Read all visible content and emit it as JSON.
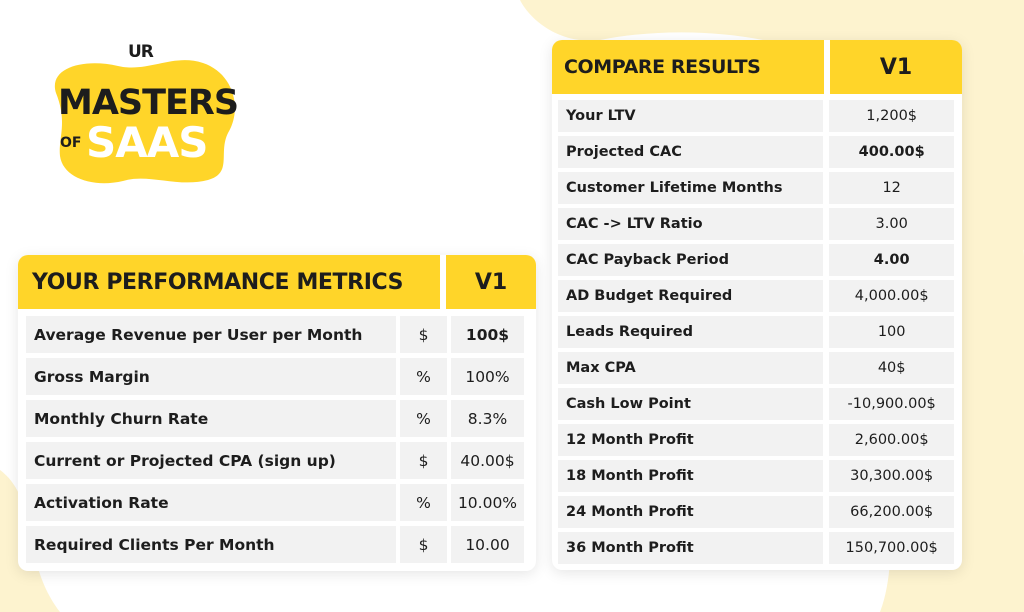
{
  "logo": {
    "mark": "UR",
    "line1": "MASTERS",
    "line2_of": "OF",
    "line2": "SAAS"
  },
  "colors": {
    "accent_yellow": "#ffd529",
    "cell_bg": "#f2f2f2",
    "bg_blob": "#fdf2cc"
  },
  "metrics": {
    "title": "YOUR PERFORMANCE METRICS",
    "version": "V1",
    "rows": [
      {
        "label": "Average Revenue per User per Month",
        "unit": "$",
        "value": "100$"
      },
      {
        "label": "Gross Margin",
        "unit": "%",
        "value": "100%"
      },
      {
        "label": "Monthly Churn Rate",
        "unit": "%",
        "value": "8.3%"
      },
      {
        "label": "Current or Projected CPA (sign up)",
        "unit": "$",
        "value": "40.00$"
      },
      {
        "label": "Activation Rate",
        "unit": "%",
        "value": "10.00%"
      },
      {
        "label": "Required Clients Per Month",
        "unit": "$",
        "value": "10.00"
      }
    ]
  },
  "results": {
    "title": "COMPARE RESULTS",
    "version": "V1",
    "rows": [
      {
        "label": "Your LTV",
        "value": "1,200$"
      },
      {
        "label": "Projected CAC",
        "value": "400.00$"
      },
      {
        "label": "Customer Lifetime Months",
        "value": "12"
      },
      {
        "label": "CAC -> LTV Ratio",
        "value": "3.00"
      },
      {
        "label": "CAC Payback Period",
        "value": "4.00"
      },
      {
        "label": "AD Budget Required",
        "value": "4,000.00$"
      },
      {
        "label": "Leads Required",
        "value": "100"
      },
      {
        "label": "Max CPA",
        "value": "40$"
      },
      {
        "label": "Cash Low Point",
        "value": "-10,900.00$"
      },
      {
        "label": "12 Month Profit",
        "value": "2,600.00$"
      },
      {
        "label": "18 Month Profit",
        "value": "30,300.00$"
      },
      {
        "label": "24 Month Profit",
        "value": "66,200.00$"
      },
      {
        "label": "36 Month Profit",
        "value": "150,700.00$"
      }
    ]
  }
}
